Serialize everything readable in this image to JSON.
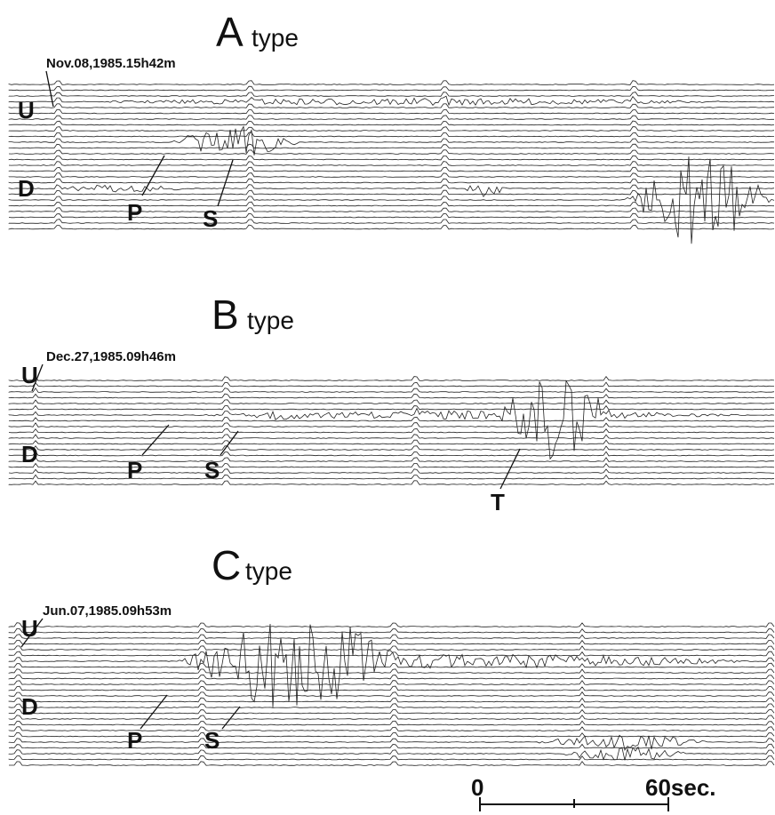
{
  "panels": [
    {
      "letter": "A",
      "suffix": "type",
      "date": "Nov.08,1985.15h42m",
      "labels": [
        "U",
        "D",
        "P",
        "S"
      ]
    },
    {
      "letter": "B",
      "suffix": "type",
      "date": "Dec.27,1985.09h46m",
      "labels": [
        "U",
        "D",
        "P",
        "S",
        "T"
      ]
    },
    {
      "letter": "C",
      "suffix": "type",
      "date": "Jun.07,1985.09h53m",
      "labels": [
        "U",
        "D",
        "P",
        "S"
      ]
    }
  ],
  "scale": {
    "start": "0",
    "end": "60sec."
  }
}
